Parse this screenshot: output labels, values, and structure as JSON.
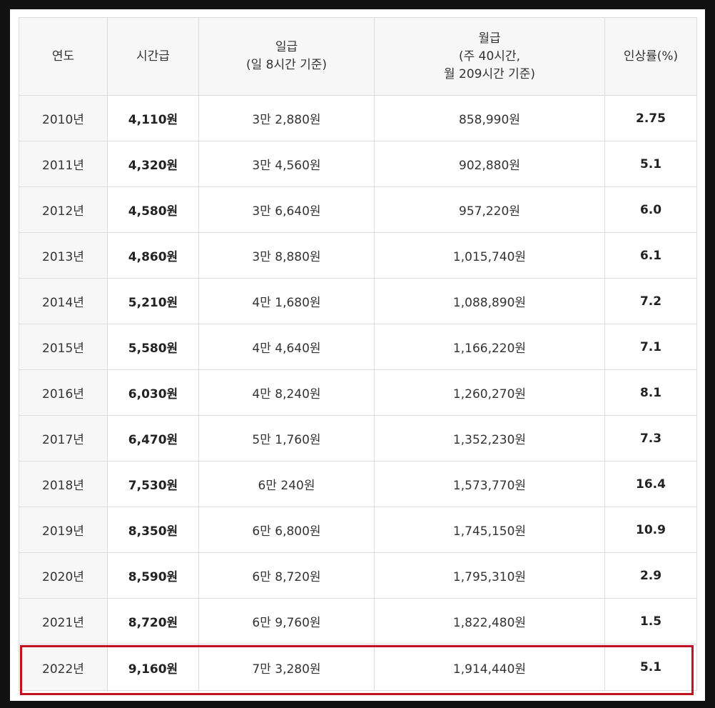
{
  "table": {
    "headers": {
      "year": "연도",
      "hourly": "시간급",
      "daily": [
        "일급",
        "(일 8시간 기준)"
      ],
      "monthly": [
        "월급",
        "(주 40시간,",
        "월 209시간 기준)"
      ],
      "rate": "인상률(%)"
    },
    "rows": [
      {
        "year": "2010년",
        "hourly": "4,110원",
        "daily": "3만 2,880원",
        "monthly": "858,990원",
        "rate": "2.75"
      },
      {
        "year": "2011년",
        "hourly": "4,320원",
        "daily": "3만 4,560원",
        "monthly": "902,880원",
        "rate": "5.1"
      },
      {
        "year": "2012년",
        "hourly": "4,580원",
        "daily": "3만 6,640원",
        "monthly": "957,220원",
        "rate": "6.0"
      },
      {
        "year": "2013년",
        "hourly": "4,860원",
        "daily": "3만 8,880원",
        "monthly": "1,015,740원",
        "rate": "6.1"
      },
      {
        "year": "2014년",
        "hourly": "5,210원",
        "daily": "4만 1,680원",
        "monthly": "1,088,890원",
        "rate": "7.2"
      },
      {
        "year": "2015년",
        "hourly": "5,580원",
        "daily": "4만 4,640원",
        "monthly": "1,166,220원",
        "rate": "7.1"
      },
      {
        "year": "2016년",
        "hourly": "6,030원",
        "daily": "4만 8,240원",
        "monthly": "1,260,270원",
        "rate": "8.1"
      },
      {
        "year": "2017년",
        "hourly": "6,470원",
        "daily": "5만 1,760원",
        "monthly": "1,352,230원",
        "rate": "7.3"
      },
      {
        "year": "2018년",
        "hourly": "7,530원",
        "daily": "6만 240원",
        "monthly": "1,573,770원",
        "rate": "16.4"
      },
      {
        "year": "2019년",
        "hourly": "8,350원",
        "daily": "6만 6,800원",
        "monthly": "1,745,150원",
        "rate": "10.9"
      },
      {
        "year": "2020년",
        "hourly": "8,590원",
        "daily": "6만 8,720원",
        "monthly": "1,795,310원",
        "rate": "2.9"
      },
      {
        "year": "2021년",
        "hourly": "8,720원",
        "daily": "6만 9,760원",
        "monthly": "1,822,480원",
        "rate": "1.5"
      },
      {
        "year": "2022년",
        "hourly": "9,160원",
        "daily": "7만 3,280원",
        "monthly": "1,914,440원",
        "rate": "5.1"
      }
    ],
    "highlight_color": "#c0121f"
  }
}
